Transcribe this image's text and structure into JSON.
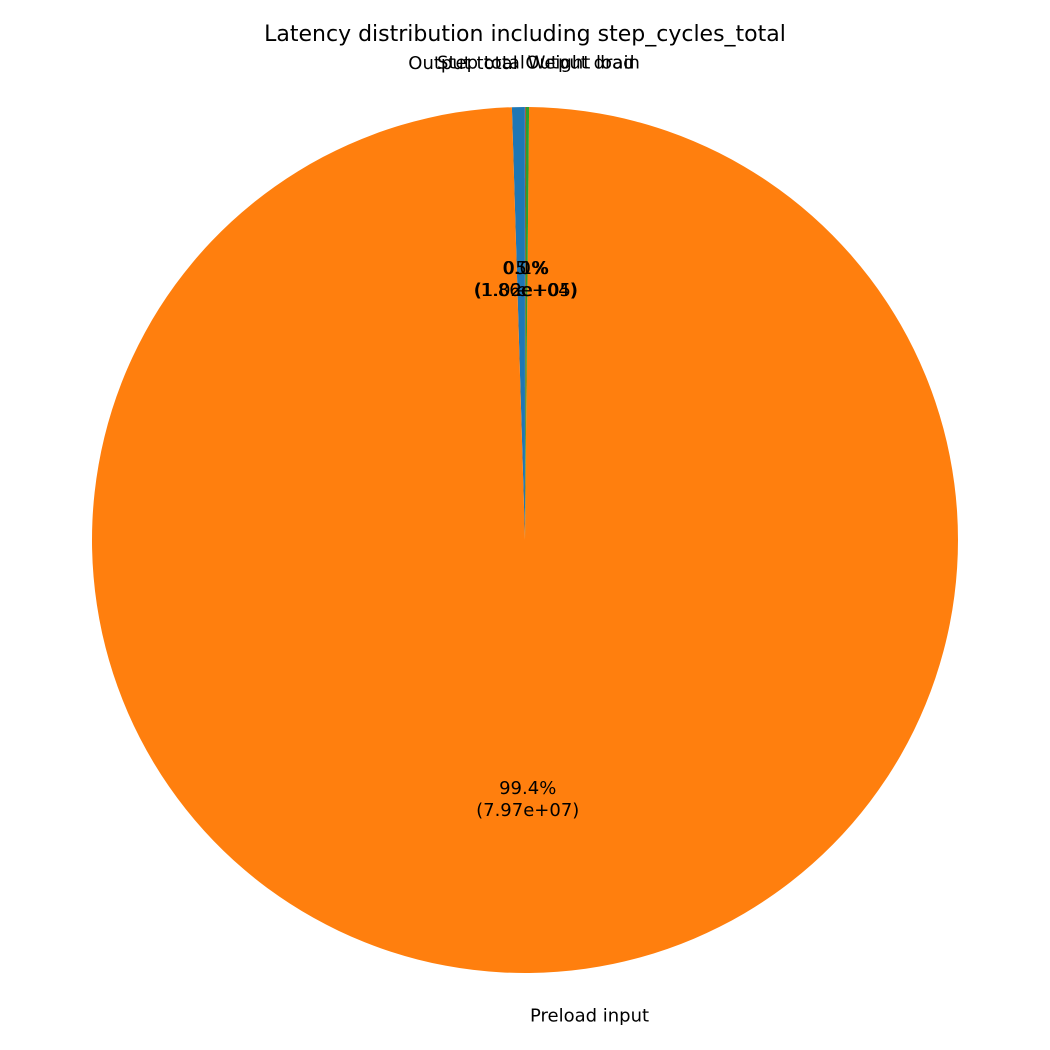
{
  "chart_data": {
    "type": "pie",
    "title": "Latency distribution including step_cycles_total",
    "categories": [
      "Step total",
      "Output total",
      "Preload input",
      "Weight load",
      "Output drain"
    ],
    "values": [
      3830,
      383000,
      79700000,
      102000,
      18600
    ],
    "value_labels": [
      "0.0%\n(3.83e+03)",
      "0.5%\n(3.83e+05)",
      "99.4%\n(7.97e+07)",
      "0.1%\n(1.02e+05)",
      "0.0%\n(1.86e+04)"
    ],
    "colors": [
      "#9467bd",
      "#1f77b4",
      "#ff7f0e",
      "#2ca02c",
      "#d62728"
    ],
    "start_angle": 90
  }
}
